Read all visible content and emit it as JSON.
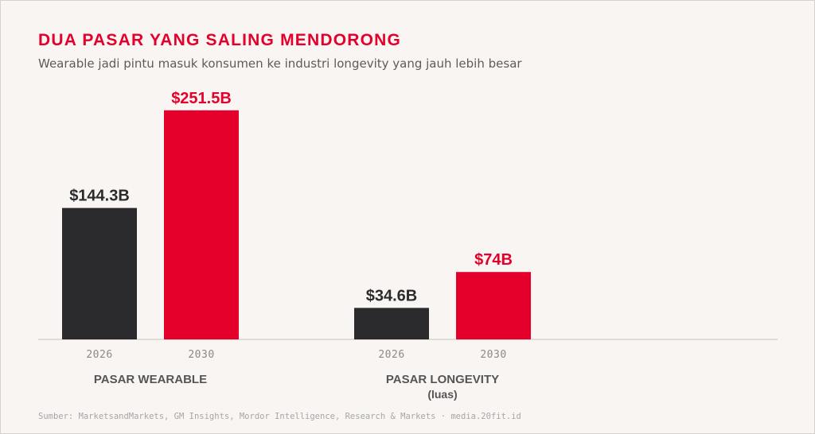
{
  "title": "DUA PASAR YANG SALING MENDORONG",
  "subtitle": "Wearable jadi pintu masuk konsumen ke industri longevity yang jauh lebih besar",
  "source": "Sumber: MarketsandMarkets, GM Insights, Mordor Intelligence, Research & Markets · media.20fit.id",
  "colors": {
    "accent": "#e4002b",
    "dark": "#2b2b2e",
    "background": "#f9f5f3"
  },
  "chart_data": {
    "type": "bar",
    "groups": [
      {
        "name": "PASAR WEARABLE",
        "sublabel": "",
        "bars": [
          {
            "year": "2026",
            "value": 144.3,
            "label": "$144.3B",
            "color": "#2b2b2e"
          },
          {
            "year": "2030",
            "value": 251.5,
            "label": "$251.5B",
            "color": "#e4002b"
          }
        ]
      },
      {
        "name": "PASAR LONGEVITY",
        "sublabel": "(luas)",
        "bars": [
          {
            "year": "2026",
            "value": 34.6,
            "label": "$34.6B",
            "color": "#2b2b2e"
          },
          {
            "year": "2030",
            "value": 74,
            "label": "$74B",
            "color": "#e4002b"
          }
        ]
      }
    ],
    "unit": "USD billion",
    "grid": false,
    "legend": "none"
  }
}
